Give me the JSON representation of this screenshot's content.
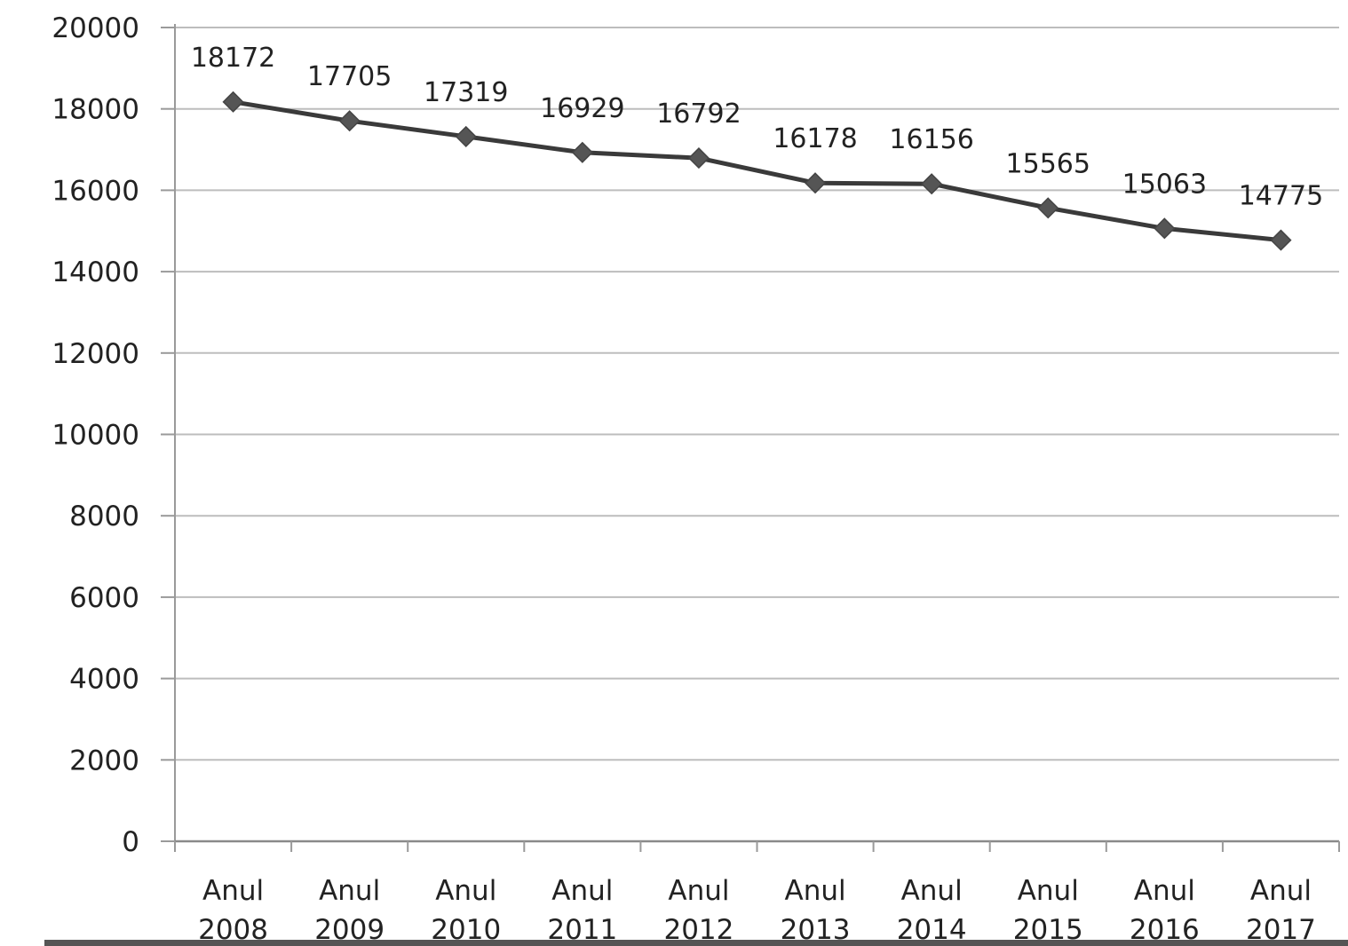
{
  "chart_data": {
    "type": "line",
    "categories": [
      [
        "Anul",
        "2008"
      ],
      [
        "Anul",
        "2009"
      ],
      [
        "Anul",
        "2010"
      ],
      [
        "Anul",
        "2011"
      ],
      [
        "Anul",
        "2012"
      ],
      [
        "Anul",
        "2013"
      ],
      [
        "Anul",
        "2014"
      ],
      [
        "Anul",
        "2015"
      ],
      [
        "Anul",
        "2016"
      ],
      [
        "Anul",
        "2017"
      ]
    ],
    "series": [
      {
        "values": [
          18172,
          17705,
          17319,
          16929,
          16792,
          16178,
          16156,
          15565,
          15063,
          14775
        ],
        "color": "#3a3a3a",
        "marker": "diamond",
        "data_labels": true
      }
    ],
    "ylim": [
      0,
      20000
    ],
    "yticks": [
      0,
      2000,
      4000,
      6000,
      8000,
      10000,
      12000,
      14000,
      16000,
      18000,
      20000
    ],
    "grid": true,
    "grid_color": "#bdbdbd",
    "axis_color": "#9a9a9a"
  }
}
